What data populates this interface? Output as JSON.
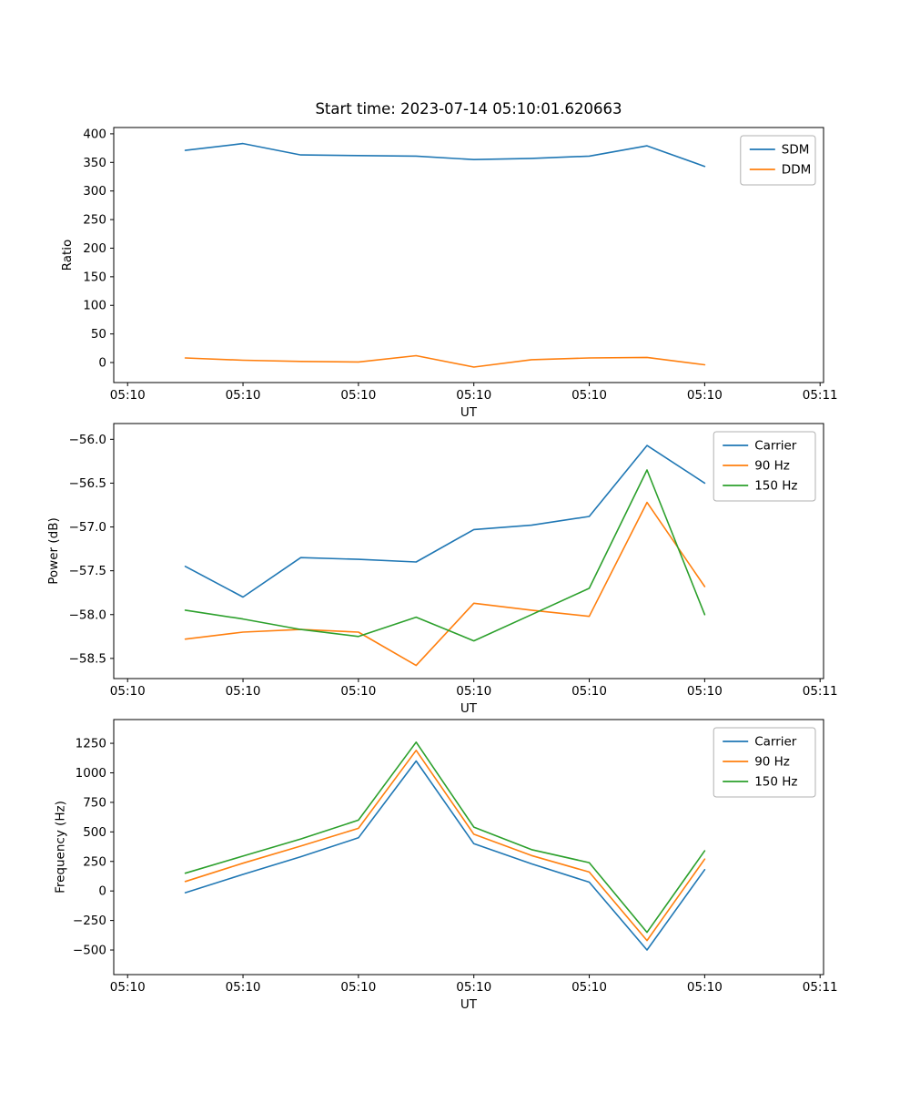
{
  "figure": {
    "background": "#ffffff",
    "text_color": "#000000",
    "legend_border_color": "#b0b0b0"
  },
  "chart_data": [
    {
      "type": "line",
      "title": "Start time: 2023-07-14 05:10:01.620663",
      "xlabel": "UT",
      "ylabel": "Ratio",
      "grid": false,
      "legend_position": "upper right",
      "x_tick_labels": [
        "05:10",
        "05:10",
        "05:10",
        "05:10",
        "05:10",
        "05:10",
        "05:11"
      ],
      "x_tick_values": [
        0,
        10,
        20,
        30,
        40,
        50,
        60
      ],
      "y_tick_labels": [
        "0",
        "50",
        "100",
        "150",
        "200",
        "250",
        "300",
        "350",
        "400"
      ],
      "y_tick_values": [
        0,
        50,
        100,
        150,
        200,
        250,
        300,
        350,
        400
      ],
      "xlim": [
        -1.2,
        60.3
      ],
      "ylim": [
        -35,
        411
      ],
      "x_seconds_after_0510": [
        5,
        10,
        15,
        20,
        25,
        30,
        35,
        40,
        45,
        50
      ],
      "series": [
        {
          "name": "SDM",
          "color": "#1f77b4",
          "values": [
            371,
            383,
            363,
            362,
            361,
            355,
            357,
            361,
            379,
            343
          ]
        },
        {
          "name": "DDM",
          "color": "#ff7f0e",
          "values": [
            8,
            4,
            2,
            1,
            12,
            -8,
            5,
            8,
            9,
            -4
          ]
        }
      ]
    },
    {
      "type": "line",
      "title": "",
      "xlabel": "UT",
      "ylabel": "Power (dB)",
      "grid": false,
      "legend_position": "upper right",
      "x_tick_labels": [
        "05:10",
        "05:10",
        "05:10",
        "05:10",
        "05:10",
        "05:10",
        "05:11"
      ],
      "x_tick_values": [
        0,
        10,
        20,
        30,
        40,
        50,
        60
      ],
      "y_tick_labels": [
        "−58.5",
        "−58.0",
        "−57.5",
        "−57.0",
        "−56.5",
        "−56.0"
      ],
      "y_tick_values": [
        -58.5,
        -58.0,
        -57.5,
        -57.0,
        -56.5,
        -56.0
      ],
      "xlim": [
        -1.2,
        60.3
      ],
      "ylim": [
        -58.73,
        -55.82
      ],
      "x_seconds_after_0510": [
        5,
        10,
        15,
        20,
        25,
        30,
        35,
        40,
        45,
        50
      ],
      "series": [
        {
          "name": "Carrier",
          "color": "#1f77b4",
          "values": [
            -57.45,
            -57.8,
            -57.35,
            -57.37,
            -57.4,
            -57.03,
            -56.98,
            -56.88,
            -56.07,
            -56.5
          ]
        },
        {
          "name": "90 Hz",
          "color": "#ff7f0e",
          "values": [
            -58.28,
            -58.2,
            -58.17,
            -58.2,
            -58.58,
            -57.87,
            -57.95,
            -58.02,
            -56.72,
            -57.68
          ]
        },
        {
          "name": "150 Hz",
          "color": "#2ca02c",
          "values": [
            -57.95,
            -58.05,
            -58.17,
            -58.25,
            -58.03,
            -58.3,
            -58.0,
            -57.7,
            -56.35,
            -58.0
          ]
        }
      ]
    },
    {
      "type": "line",
      "title": "",
      "xlabel": "UT",
      "ylabel": "Frequency (Hz)",
      "grid": false,
      "legend_position": "upper right",
      "x_tick_labels": [
        "05:10",
        "05:10",
        "05:10",
        "05:10",
        "05:10",
        "05:10",
        "05:11"
      ],
      "x_tick_values": [
        0,
        10,
        20,
        30,
        40,
        50,
        60
      ],
      "y_tick_labels": [
        "−500",
        "−250",
        "0",
        "250",
        "500",
        "750",
        "1000",
        "1250"
      ],
      "y_tick_values": [
        -500,
        -250,
        0,
        250,
        500,
        750,
        1000,
        1250
      ],
      "xlim": [
        -1.2,
        60.3
      ],
      "ylim": [
        -708,
        1451
      ],
      "x_seconds_after_0510": [
        5,
        10,
        15,
        20,
        25,
        30,
        35,
        40,
        45,
        50
      ],
      "series": [
        {
          "name": "Carrier",
          "color": "#1f77b4",
          "values": [
            -15,
            140,
            290,
            450,
            1100,
            400,
            230,
            75,
            -500,
            180
          ]
        },
        {
          "name": "90 Hz",
          "color": "#ff7f0e",
          "values": [
            80,
            235,
            380,
            530,
            1190,
            480,
            300,
            160,
            -420,
            270
          ]
        },
        {
          "name": "150 Hz",
          "color": "#2ca02c",
          "values": [
            150,
            295,
            440,
            600,
            1260,
            540,
            350,
            240,
            -350,
            340
          ]
        }
      ]
    }
  ]
}
